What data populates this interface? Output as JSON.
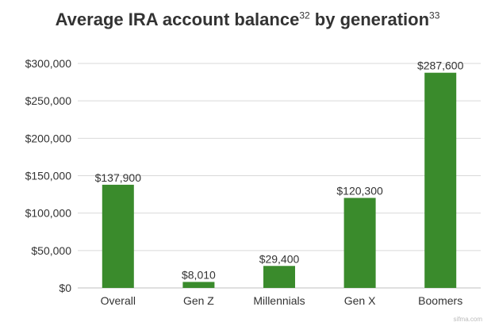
{
  "title": {
    "text1": "Average IRA account balance",
    "sup1": "32",
    "text2": " by generation",
    "sup2": "33"
  },
  "watermark": "sifma.com",
  "colors": {
    "bar": "#3a8b2c",
    "grid": "#d9d9d9",
    "text": "#333333"
  },
  "chart_data": {
    "type": "bar",
    "categories": [
      "Overall",
      "Gen Z",
      "Millennials",
      "Gen X",
      "Boomers"
    ],
    "values": [
      137900,
      8010,
      29400,
      120300,
      287600
    ],
    "value_labels": [
      "$137,900",
      "$8,010",
      "$29,400",
      "$120,300",
      "$287,600"
    ],
    "yticks": [
      0,
      50000,
      100000,
      150000,
      200000,
      250000,
      300000
    ],
    "ytick_labels": [
      "$0",
      "$50,000",
      "$100,000",
      "$150,000",
      "$200,000",
      "$250,000",
      "$300,000"
    ],
    "ylim": [
      0,
      300000
    ],
    "grid": true,
    "xlabel": "",
    "ylabel": ""
  }
}
